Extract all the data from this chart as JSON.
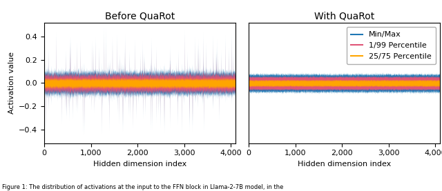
{
  "title_left": "Before QuaRot",
  "title_right": "With QuaRot",
  "xlabel": "Hidden dimension index",
  "ylabel": "Activation value",
  "n_points": 4096,
  "xlim": [
    0,
    4096
  ],
  "ylim_left": [
    -0.52,
    0.52
  ],
  "ylim_right": [
    -0.52,
    0.52
  ],
  "xticks": [
    0,
    1000,
    2000,
    3000,
    4000
  ],
  "yticks_left": [
    -0.4,
    -0.2,
    0.0,
    0.2,
    0.4
  ],
  "color_minmax": "#1f77b4",
  "color_p1_99": "#e05577",
  "color_p25_75": "#ffa500",
  "legend_labels": [
    "Min/Max",
    "1/99 Percentile",
    "25/75 Percentile"
  ],
  "title_fontsize": 10,
  "label_fontsize": 8,
  "tick_fontsize": 8,
  "legend_fontsize": 8,
  "caption": "Figure 1: The distribution of activations at the input to the FFN block in Llama-2-7B model, in the",
  "figsize": [
    6.4,
    2.77
  ],
  "dpi": 100,
  "seed": 42
}
